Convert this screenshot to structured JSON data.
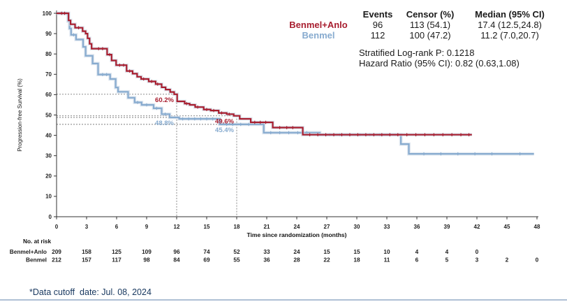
{
  "stats": {
    "headers": [
      "Events",
      "Censor (%)",
      "Median (95% CI)"
    ],
    "rows": [
      {
        "name": "Benmel+Anlo",
        "events": "96",
        "censor": "113 (54.1)",
        "median": "17.4 (12.5,24.8)",
        "color": "#A81E2F"
      },
      {
        "name": "Benmel",
        "events": "112",
        "censor": "100 (47.2)",
        "median": "11.2 (7.0,20.7)",
        "color": "#87ABCF"
      }
    ],
    "logrank_line": "Stratified Log-rank P: 0.1218",
    "hazard_line": "Hazard Ratio (95% CI): 0.82 (0.63,1.08)"
  },
  "footer": {
    "note": "*Data cutoff  date: Jul. 08, 2024",
    "color": "#17375E",
    "divider_color": "#AFC0D5"
  },
  "chart_data": {
    "type": "line",
    "subtype": "kaplan-meier-step",
    "title": "",
    "xlabel": "Time since randomization (months)",
    "ylabel": "Progression-free Survival (%)",
    "xlim": [
      0,
      48
    ],
    "ylim": [
      0,
      100
    ],
    "xticks": [
      0,
      3,
      6,
      9,
      12,
      15,
      18,
      21,
      24,
      27,
      30,
      33,
      36,
      39,
      42,
      45,
      48
    ],
    "yticks": [
      0,
      10,
      20,
      30,
      40,
      50,
      60,
      70,
      80,
      90,
      100
    ],
    "grid": false,
    "legend_position": "top-right",
    "series": [
      {
        "name": "Benmel+Anlo",
        "color": "#A81E2F",
        "steps": [
          [
            0,
            100
          ],
          [
            1.1,
            100
          ],
          [
            1.2,
            96.5
          ],
          [
            1.4,
            94.6
          ],
          [
            1.85,
            92.9
          ],
          [
            2.6,
            91.2
          ],
          [
            2.9,
            90
          ],
          [
            3.1,
            87.7
          ],
          [
            3.3,
            85
          ],
          [
            3.5,
            82.6
          ],
          [
            5.05,
            79.7
          ],
          [
            5.5,
            76.8
          ],
          [
            5.95,
            74.5
          ],
          [
            7.0,
            71.6
          ],
          [
            7.6,
            70.3
          ],
          [
            8.05,
            68.8
          ],
          [
            8.45,
            67.7
          ],
          [
            9.2,
            66.5
          ],
          [
            9.9,
            65.2
          ],
          [
            10.5,
            63.6
          ],
          [
            10.9,
            62.5
          ],
          [
            11.35,
            61.3
          ],
          [
            11.75,
            60.2
          ],
          [
            12.05,
            56.7
          ],
          [
            12.8,
            55.6
          ],
          [
            13.3,
            55
          ],
          [
            13.85,
            53.9
          ],
          [
            14.7,
            52.7
          ],
          [
            15.4,
            52.2
          ],
          [
            16.2,
            51
          ],
          [
            17.0,
            50.4
          ],
          [
            17.7,
            49.6
          ],
          [
            18.3,
            48.1
          ],
          [
            19.4,
            46.4
          ],
          [
            21.6,
            43.8
          ],
          [
            24.6,
            40.3
          ],
          [
            41.5,
            40.3
          ]
        ],
        "censors": [
          [
            0.5,
            100
          ],
          [
            0.8,
            100
          ],
          [
            2.2,
            92.9
          ],
          [
            4.2,
            82.6
          ],
          [
            4.6,
            82.6
          ],
          [
            5.3,
            79.7
          ],
          [
            6.3,
            74.5
          ],
          [
            6.7,
            74.5
          ],
          [
            7.3,
            71.6
          ],
          [
            8.7,
            67.7
          ],
          [
            9.5,
            66.5
          ],
          [
            10.1,
            65.2
          ],
          [
            13.0,
            55.6
          ],
          [
            14.1,
            53.9
          ],
          [
            15.0,
            52.7
          ],
          [
            15.7,
            52.2
          ],
          [
            16.5,
            51
          ],
          [
            17.25,
            50.4
          ],
          [
            19.8,
            46.4
          ],
          [
            20.35,
            46.4
          ],
          [
            20.9,
            46.4
          ],
          [
            22.3,
            43.8
          ],
          [
            23.0,
            43.8
          ],
          [
            23.6,
            43.8
          ],
          [
            25.3,
            40.3
          ],
          [
            26.1,
            40.3
          ],
          [
            26.9,
            40.3
          ],
          [
            27.7,
            40.3
          ],
          [
            28.5,
            40.3
          ],
          [
            29.3,
            40.3
          ],
          [
            30.1,
            40.3
          ],
          [
            30.9,
            40.3
          ],
          [
            31.7,
            40.3
          ],
          [
            32.5,
            40.3
          ],
          [
            33.3,
            40.3
          ],
          [
            34.1,
            40.3
          ],
          [
            35.0,
            40.3
          ],
          [
            35.9,
            40.3
          ],
          [
            36.8,
            40.3
          ],
          [
            37.7,
            40.3
          ],
          [
            38.6,
            40.3
          ],
          [
            39.5,
            40.3
          ],
          [
            40.4,
            40.3
          ],
          [
            41.2,
            40.3
          ]
        ]
      },
      {
        "name": "Benmel",
        "color": "#87ABCF",
        "steps": [
          [
            0,
            100
          ],
          [
            1.05,
            100
          ],
          [
            1.15,
            96.2
          ],
          [
            1.3,
            92.5
          ],
          [
            1.45,
            89.4
          ],
          [
            1.95,
            87.1
          ],
          [
            2.65,
            83.5
          ],
          [
            2.9,
            79.1
          ],
          [
            3.6,
            75.3
          ],
          [
            4.15,
            69.9
          ],
          [
            5.35,
            67.7
          ],
          [
            5.9,
            63.5
          ],
          [
            6.15,
            61.4
          ],
          [
            7.15,
            58.5
          ],
          [
            7.8,
            56.2
          ],
          [
            8.5,
            55
          ],
          [
            9.7,
            53.3
          ],
          [
            10.5,
            50.4
          ],
          [
            11.3,
            48.8
          ],
          [
            12.25,
            48.1
          ],
          [
            16.3,
            45.4
          ],
          [
            20.7,
            41.3
          ],
          [
            26.3,
            40.3
          ],
          [
            34.4,
            35.7
          ],
          [
            35.2,
            30.9
          ],
          [
            47.7,
            30.9
          ]
        ],
        "censors": [
          [
            0.6,
            100
          ],
          [
            0.9,
            100
          ],
          [
            1.7,
            89.4
          ],
          [
            4.6,
            69.9
          ],
          [
            5.0,
            69.9
          ],
          [
            8.1,
            56.2
          ],
          [
            9.0,
            55
          ],
          [
            10.0,
            53.3
          ],
          [
            10.85,
            50.4
          ],
          [
            12.6,
            48.1
          ],
          [
            13.2,
            48.1
          ],
          [
            13.8,
            48.1
          ],
          [
            14.4,
            48.1
          ],
          [
            15.0,
            48.1
          ],
          [
            15.6,
            48.1
          ],
          [
            17.0,
            45.4
          ],
          [
            17.6,
            45.4
          ],
          [
            18.4,
            45.4
          ],
          [
            19.2,
            45.4
          ],
          [
            21.4,
            41.3
          ],
          [
            22.3,
            41.3
          ],
          [
            23.2,
            41.3
          ],
          [
            24.1,
            41.3
          ],
          [
            25.0,
            41.3
          ],
          [
            27.3,
            40.3
          ],
          [
            28.3,
            40.3
          ],
          [
            29.3,
            40.3
          ],
          [
            30.3,
            40.3
          ],
          [
            31.3,
            40.3
          ],
          [
            32.3,
            40.3
          ],
          [
            33.3,
            40.3
          ],
          [
            36.7,
            30.9
          ],
          [
            38.4,
            30.9
          ],
          [
            40.1,
            30.9
          ],
          [
            41.8,
            30.9
          ],
          [
            43.5,
            30.9
          ],
          [
            46.3,
            30.9
          ]
        ]
      }
    ],
    "reference_lines": {
      "color": "#7E7E7E",
      "horizontal": [
        {
          "y": 60.2,
          "to_month": 12
        },
        {
          "y": 49.6,
          "to_month": 18
        },
        {
          "y": 48.8,
          "to_month": 12
        },
        {
          "y": 45.4,
          "to_month": 18
        }
      ],
      "vertical": [
        {
          "x": 12,
          "from_pct": 60.2
        },
        {
          "x": 18,
          "from_pct": 49.6
        }
      ]
    },
    "annotations": [
      {
        "text": "60.2%",
        "month": 12,
        "pct": 60.2,
        "series": "Benmel+Anlo",
        "color": "#A81E2F"
      },
      {
        "text": "48.8%",
        "month": 12,
        "pct": 48.8,
        "series": "Benmel",
        "color": "#87ABCF"
      },
      {
        "text": "49.6%",
        "month": 18,
        "pct": 49.6,
        "series": "Benmel+Anlo",
        "color": "#A81E2F"
      },
      {
        "text": "45.4%",
        "month": 18,
        "pct": 45.4,
        "series": "Benmel",
        "color": "#87ABCF"
      }
    ],
    "risk_table": {
      "title": "No. at risk",
      "months": [
        0,
        3,
        6,
        9,
        12,
        15,
        18,
        21,
        24,
        27,
        30,
        33,
        36,
        39,
        42,
        45,
        48
      ],
      "rows": [
        {
          "name": "Benmel+Anlo",
          "counts": [
            209,
            158,
            125,
            109,
            96,
            74,
            52,
            33,
            24,
            15,
            15,
            10,
            4,
            4,
            0
          ]
        },
        {
          "name": "Benmel",
          "counts": [
            212,
            157,
            117,
            98,
            84,
            69,
            55,
            36,
            28,
            22,
            18,
            11,
            6,
            5,
            3,
            2,
            0
          ]
        }
      ]
    }
  }
}
